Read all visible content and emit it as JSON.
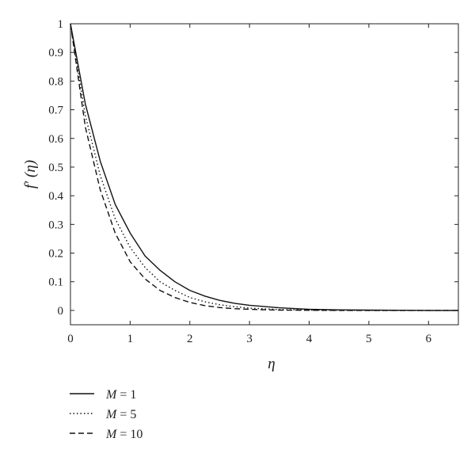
{
  "chart_data": {
    "type": "line",
    "xlabel": "η",
    "ylabel": "f′ (η)",
    "xlim": [
      0,
      6.5
    ],
    "ylim": [
      -0.05,
      1
    ],
    "xticks": [
      0,
      1,
      2,
      3,
      4,
      5,
      6
    ],
    "yticks": [
      0,
      0.1,
      0.2,
      0.3,
      0.4,
      0.5,
      0.6,
      0.7,
      0.8,
      0.9,
      1
    ],
    "xtick_labels": [
      "0",
      "1",
      "2",
      "3",
      "4",
      "5",
      "6"
    ],
    "ytick_labels": [
      "0",
      "0.1",
      "0.2",
      "0.3",
      "0.4",
      "0.5",
      "0.6",
      "0.7",
      "0.8",
      "0.9",
      "1"
    ],
    "grid": false,
    "legend_position": "below-left",
    "x": [
      0,
      0.25,
      0.5,
      0.75,
      1,
      1.25,
      1.5,
      1.75,
      2,
      2.25,
      2.5,
      2.75,
      3,
      3.5,
      4,
      4.5,
      5,
      5.5,
      6,
      6.5
    ],
    "series": [
      {
        "name": "M = 1",
        "name_var": "M",
        "name_rest": " = 1",
        "style": "solid",
        "values": [
          1.0,
          0.72,
          0.52,
          0.37,
          0.27,
          0.19,
          0.14,
          0.1,
          0.07,
          0.05,
          0.035,
          0.025,
          0.018,
          0.009,
          0.004,
          0.002,
          0.001,
          0.0005,
          0.0,
          0.0
        ]
      },
      {
        "name": "M = 5",
        "name_var": "M",
        "name_rest": " = 5",
        "style": "dotted",
        "values": [
          1.0,
          0.68,
          0.47,
          0.32,
          0.22,
          0.15,
          0.1,
          0.07,
          0.045,
          0.03,
          0.02,
          0.013,
          0.008,
          0.003,
          0.001,
          0.0005,
          0.0,
          0.0,
          0.0,
          0.0
        ]
      },
      {
        "name": "M = 10",
        "name_var": "M",
        "name_rest": " = 10",
        "style": "dashed",
        "values": [
          1.0,
          0.64,
          0.42,
          0.27,
          0.17,
          0.11,
          0.07,
          0.045,
          0.028,
          0.017,
          0.01,
          0.006,
          0.004,
          0.001,
          0.0005,
          0.0,
          0.0,
          0.0,
          0.0,
          0.0
        ]
      }
    ]
  }
}
